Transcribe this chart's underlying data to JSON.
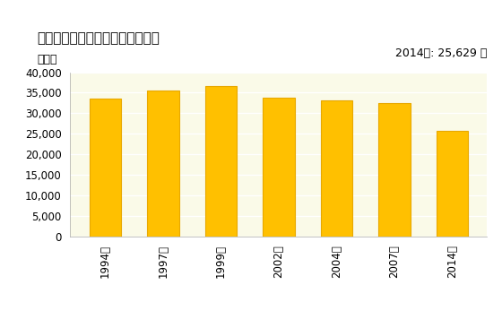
{
  "title": "機械器具小売業の従業者数の推移",
  "ylabel": "［人］",
  "annotation": "2014年: 25,629 人",
  "categories": [
    "1994年",
    "1997年",
    "1999年",
    "2002年",
    "2004年",
    "2007年",
    "2014年"
  ],
  "values": [
    33500,
    35600,
    36600,
    33700,
    33200,
    32400,
    25629
  ],
  "bar_color": "#FFC000",
  "bar_edge_color": "#E8A800",
  "ylim": [
    0,
    40000
  ],
  "yticks": [
    0,
    5000,
    10000,
    15000,
    20000,
    25000,
    30000,
    35000,
    40000
  ],
  "background_color": "#FFFFFF",
  "plot_area_color": "#FAFAE8",
  "title_fontsize": 11,
  "label_fontsize": 9,
  "tick_fontsize": 8.5,
  "annotation_fontsize": 9
}
